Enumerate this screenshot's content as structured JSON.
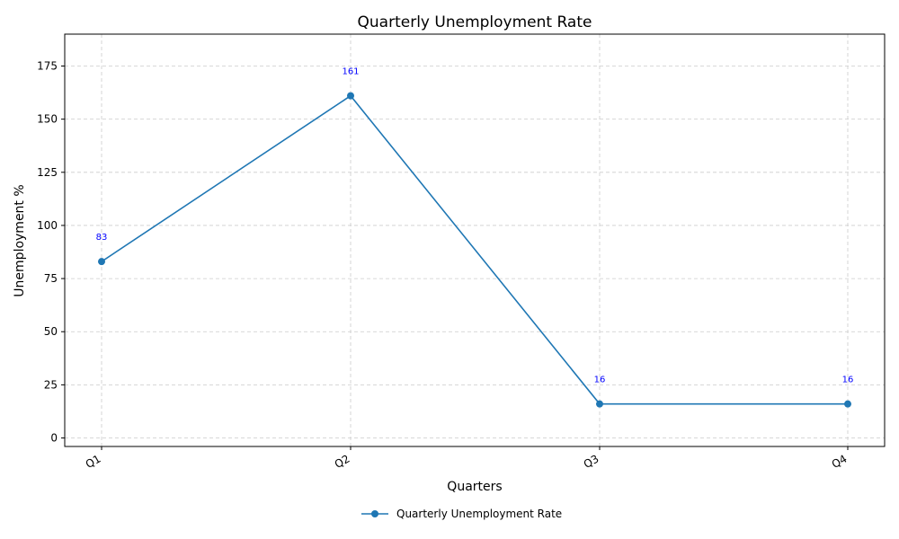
{
  "chart_data": {
    "type": "line",
    "title": "Quarterly Unemployment Rate",
    "xlabel": "Quarters",
    "ylabel": "Unemployment %",
    "categories": [
      "Q1",
      "Q2",
      "Q3",
      "Q4"
    ],
    "series": [
      {
        "name": "Quarterly Unemployment Rate",
        "values": [
          83,
          161,
          16,
          16
        ],
        "color": "#1f77b4"
      }
    ],
    "data_labels": [
      "83",
      "161",
      "16",
      "16"
    ],
    "data_label_color": "#0000ff",
    "ylim": [
      -4,
      190
    ],
    "yticks": [
      0,
      25,
      50,
      75,
      100,
      125,
      150,
      175
    ],
    "grid": true,
    "legend_position": "bottom-center"
  }
}
